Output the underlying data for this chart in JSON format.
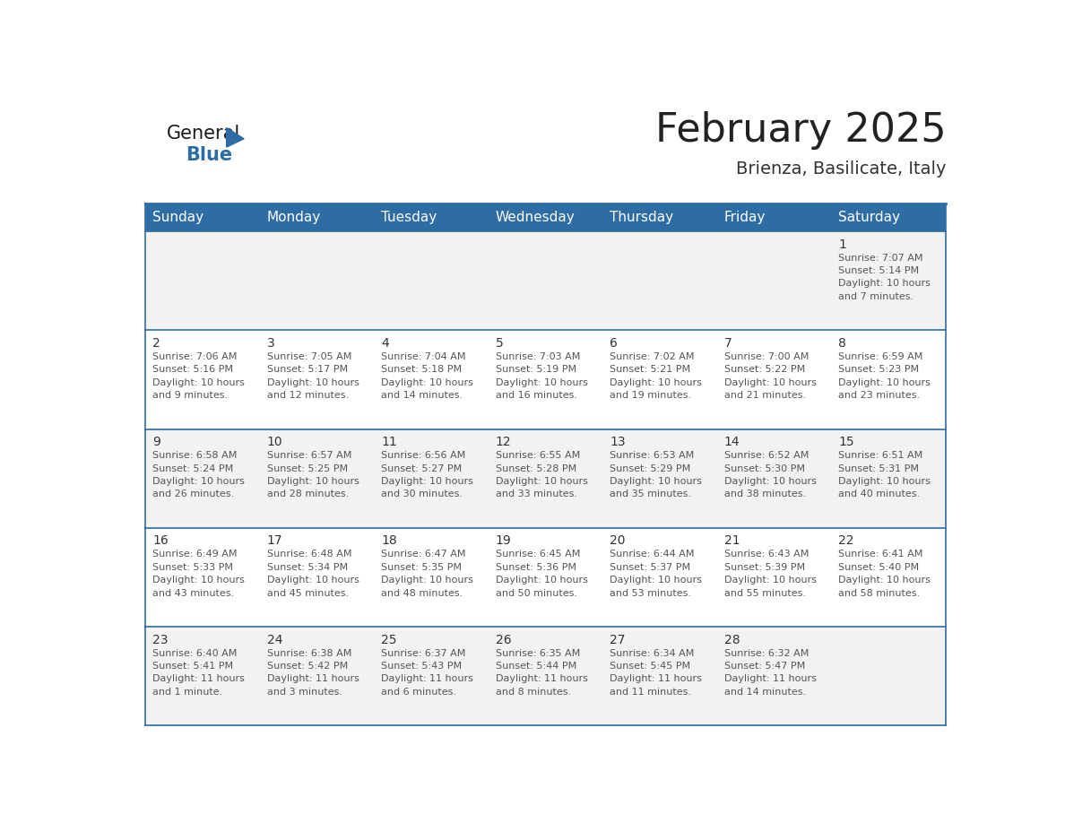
{
  "title": "February 2025",
  "subtitle": "Brienza, Basilicate, Italy",
  "header_bg": "#2E6DA4",
  "header_text_color": "#FFFFFF",
  "cell_bg_odd": "#F2F2F2",
  "cell_bg_even": "#FFFFFF",
  "border_color": "#2E6DA4",
  "text_color": "#555555",
  "day_number_color": "#333333",
  "info_text_color": "#555555",
  "days_of_week": [
    "Sunday",
    "Monday",
    "Tuesday",
    "Wednesday",
    "Thursday",
    "Friday",
    "Saturday"
  ],
  "calendar_data": [
    [
      {
        "day": null,
        "info": null
      },
      {
        "day": null,
        "info": null
      },
      {
        "day": null,
        "info": null
      },
      {
        "day": null,
        "info": null
      },
      {
        "day": null,
        "info": null
      },
      {
        "day": null,
        "info": null
      },
      {
        "day": 1,
        "info": "Sunrise: 7:07 AM\nSunset: 5:14 PM\nDaylight: 10 hours\nand 7 minutes."
      }
    ],
    [
      {
        "day": 2,
        "info": "Sunrise: 7:06 AM\nSunset: 5:16 PM\nDaylight: 10 hours\nand 9 minutes."
      },
      {
        "day": 3,
        "info": "Sunrise: 7:05 AM\nSunset: 5:17 PM\nDaylight: 10 hours\nand 12 minutes."
      },
      {
        "day": 4,
        "info": "Sunrise: 7:04 AM\nSunset: 5:18 PM\nDaylight: 10 hours\nand 14 minutes."
      },
      {
        "day": 5,
        "info": "Sunrise: 7:03 AM\nSunset: 5:19 PM\nDaylight: 10 hours\nand 16 minutes."
      },
      {
        "day": 6,
        "info": "Sunrise: 7:02 AM\nSunset: 5:21 PM\nDaylight: 10 hours\nand 19 minutes."
      },
      {
        "day": 7,
        "info": "Sunrise: 7:00 AM\nSunset: 5:22 PM\nDaylight: 10 hours\nand 21 minutes."
      },
      {
        "day": 8,
        "info": "Sunrise: 6:59 AM\nSunset: 5:23 PM\nDaylight: 10 hours\nand 23 minutes."
      }
    ],
    [
      {
        "day": 9,
        "info": "Sunrise: 6:58 AM\nSunset: 5:24 PM\nDaylight: 10 hours\nand 26 minutes."
      },
      {
        "day": 10,
        "info": "Sunrise: 6:57 AM\nSunset: 5:25 PM\nDaylight: 10 hours\nand 28 minutes."
      },
      {
        "day": 11,
        "info": "Sunrise: 6:56 AM\nSunset: 5:27 PM\nDaylight: 10 hours\nand 30 minutes."
      },
      {
        "day": 12,
        "info": "Sunrise: 6:55 AM\nSunset: 5:28 PM\nDaylight: 10 hours\nand 33 minutes."
      },
      {
        "day": 13,
        "info": "Sunrise: 6:53 AM\nSunset: 5:29 PM\nDaylight: 10 hours\nand 35 minutes."
      },
      {
        "day": 14,
        "info": "Sunrise: 6:52 AM\nSunset: 5:30 PM\nDaylight: 10 hours\nand 38 minutes."
      },
      {
        "day": 15,
        "info": "Sunrise: 6:51 AM\nSunset: 5:31 PM\nDaylight: 10 hours\nand 40 minutes."
      }
    ],
    [
      {
        "day": 16,
        "info": "Sunrise: 6:49 AM\nSunset: 5:33 PM\nDaylight: 10 hours\nand 43 minutes."
      },
      {
        "day": 17,
        "info": "Sunrise: 6:48 AM\nSunset: 5:34 PM\nDaylight: 10 hours\nand 45 minutes."
      },
      {
        "day": 18,
        "info": "Sunrise: 6:47 AM\nSunset: 5:35 PM\nDaylight: 10 hours\nand 48 minutes."
      },
      {
        "day": 19,
        "info": "Sunrise: 6:45 AM\nSunset: 5:36 PM\nDaylight: 10 hours\nand 50 minutes."
      },
      {
        "day": 20,
        "info": "Sunrise: 6:44 AM\nSunset: 5:37 PM\nDaylight: 10 hours\nand 53 minutes."
      },
      {
        "day": 21,
        "info": "Sunrise: 6:43 AM\nSunset: 5:39 PM\nDaylight: 10 hours\nand 55 minutes."
      },
      {
        "day": 22,
        "info": "Sunrise: 6:41 AM\nSunset: 5:40 PM\nDaylight: 10 hours\nand 58 minutes."
      }
    ],
    [
      {
        "day": 23,
        "info": "Sunrise: 6:40 AM\nSunset: 5:41 PM\nDaylight: 11 hours\nand 1 minute."
      },
      {
        "day": 24,
        "info": "Sunrise: 6:38 AM\nSunset: 5:42 PM\nDaylight: 11 hours\nand 3 minutes."
      },
      {
        "day": 25,
        "info": "Sunrise: 6:37 AM\nSunset: 5:43 PM\nDaylight: 11 hours\nand 6 minutes."
      },
      {
        "day": 26,
        "info": "Sunrise: 6:35 AM\nSunset: 5:44 PM\nDaylight: 11 hours\nand 8 minutes."
      },
      {
        "day": 27,
        "info": "Sunrise: 6:34 AM\nSunset: 5:45 PM\nDaylight: 11 hours\nand 11 minutes."
      },
      {
        "day": 28,
        "info": "Sunrise: 6:32 AM\nSunset: 5:47 PM\nDaylight: 11 hours\nand 14 minutes."
      },
      {
        "day": null,
        "info": null
      }
    ]
  ],
  "logo_color_general": "#1a1a1a",
  "logo_color_blue": "#2E6DA4",
  "logo_triangle_color": "#2E6DA4",
  "title_fontsize": 32,
  "subtitle_fontsize": 14,
  "header_fontsize": 11,
  "day_number_fontsize": 10,
  "info_fontsize": 8
}
